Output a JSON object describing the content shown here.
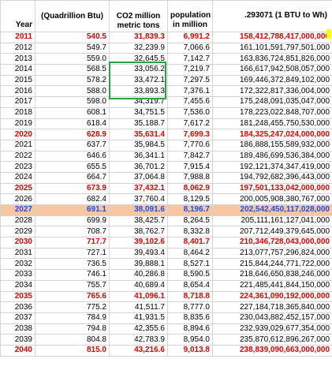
{
  "headers": {
    "year": "Year",
    "energy": "(Quadrillion Btu)",
    "co2": "CO2 million metric tons",
    "population": "population in million",
    "wh": ".293071 (1 BTU to Wh)"
  },
  "rows": [
    {
      "year": "2011",
      "energy": "540.5",
      "co2": "31,839.3",
      "pop": "6,991.2",
      "wh": "158,412,788,417,000,000",
      "style": "red"
    },
    {
      "year": "2012",
      "energy": "549.7",
      "co2": "32,239.9",
      "pop": "7,066.6",
      "wh": "161,101,591,797,501,000",
      "style": ""
    },
    {
      "year": "2013",
      "energy": "559.0",
      "co2": "32,645.5",
      "pop": "7,142.7",
      "wh": "163,836,724,851,826,000",
      "style": ""
    },
    {
      "year": "2014",
      "energy": "568.5",
      "co2": "33,056.2",
      "pop": "7,219.7",
      "wh": "166,617,942,508,057,000",
      "style": ""
    },
    {
      "year": "2015",
      "energy": "578.2",
      "co2": "33,472.1",
      "pop": "7,297.5",
      "wh": "169,446,372,849,102,000",
      "style": ""
    },
    {
      "year": "2016",
      "energy": "588.0",
      "co2": "33,893.3",
      "pop": "7,376.1",
      "wh": "172,322,817,336,004,000",
      "style": ""
    },
    {
      "year": "2017",
      "energy": "598.0",
      "co2": "34,319.7",
      "pop": "7,455.6",
      "wh": "175,248,091,035,047,000",
      "style": ""
    },
    {
      "year": "2018",
      "energy": "608.1",
      "co2": "34,751.5",
      "pop": "7,536.0",
      "wh": "178,223,022,848,707,000",
      "style": ""
    },
    {
      "year": "2019",
      "energy": "618.4",
      "co2": "35,188.7",
      "pop": "7,617.2",
      "wh": "181,248,455,750,530,000",
      "style": ""
    },
    {
      "year": "2020",
      "energy": "628.9",
      "co2": "35,631.4",
      "pop": "7,699.3",
      "wh": "184,325,247,024,000,000",
      "style": "red"
    },
    {
      "year": "2021",
      "energy": "637.7",
      "co2": "35,984.5",
      "pop": "7,770.6",
      "wh": "186,888,155,589,932,000",
      "style": ""
    },
    {
      "year": "2022",
      "energy": "646.6",
      "co2": "36,341.1",
      "pop": "7,842.7",
      "wh": "189,486,699,536,384,000",
      "style": ""
    },
    {
      "year": "2023",
      "energy": "655.5",
      "co2": "36,701.2",
      "pop": "7,915.4",
      "wh": "192,121,374,347,419,000",
      "style": ""
    },
    {
      "year": "2024",
      "energy": "664.7",
      "co2": "37,064.8",
      "pop": "7,988.8",
      "wh": "194,792,682,396,443,000",
      "style": ""
    },
    {
      "year": "2025",
      "energy": "673.9",
      "co2": "37,432.1",
      "pop": "8,062.9",
      "wh": "197,501,133,042,000,000",
      "style": "red"
    },
    {
      "year": "2026",
      "energy": "682.4",
      "co2": "37,760.4",
      "pop": "8,129.5",
      "wh": "200,005,908,380,767,000",
      "style": ""
    },
    {
      "year": "2027",
      "energy": "691.1",
      "co2": "38,091.6",
      "pop": "8,196.7",
      "wh": "202,542,450,117,028,000",
      "style": "highlight"
    },
    {
      "year": "2028",
      "energy": "699.9",
      "co2": "38,425.7",
      "pop": "8,264.5",
      "wh": "205,111,161,127,041,000",
      "style": ""
    },
    {
      "year": "2029",
      "energy": "708.7",
      "co2": "38,762.7",
      "pop": "8,332.8",
      "wh": "207,712,449,379,645,000",
      "style": ""
    },
    {
      "year": "2030",
      "energy": "717.7",
      "co2": "39,102.6",
      "pop": "8,401.7",
      "wh": "210,346,728,043,000,000",
      "style": "red"
    },
    {
      "year": "2031",
      "energy": "727.1",
      "co2": "39,493.4",
      "pop": "8,464.2",
      "wh": "213,077,757,296,824,000",
      "style": ""
    },
    {
      "year": "2032",
      "energy": "736.5",
      "co2": "39,888.1",
      "pop": "8,527.1",
      "wh": "215,844,244,771,722,000",
      "style": ""
    },
    {
      "year": "2033",
      "energy": "746.1",
      "co2": "40,286.8",
      "pop": "8,590.5",
      "wh": "218,646,650,838,246,000",
      "style": ""
    },
    {
      "year": "2034",
      "energy": "755.7",
      "co2": "40,689.4",
      "pop": "8,654.4",
      "wh": "221,485,441,844,150,000",
      "style": ""
    },
    {
      "year": "2035",
      "energy": "765.6",
      "co2": "41,096.1",
      "pop": "8,718.8",
      "wh": "224,361,090,192,000,000",
      "style": "red"
    },
    {
      "year": "2036",
      "energy": "775.2",
      "co2": "41,511.7",
      "pop": "8,777.0",
      "wh": "227,184,718,365,840,000",
      "style": ""
    },
    {
      "year": "2037",
      "energy": "784.9",
      "co2": "41,931.5",
      "pop": "8,835.6",
      "wh": "230,043,882,452,157,000",
      "style": ""
    },
    {
      "year": "2038",
      "energy": "794.8",
      "co2": "42,355.6",
      "pop": "8,894.6",
      "wh": "232,939,029,677,354,000",
      "style": ""
    },
    {
      "year": "2039",
      "energy": "804.8",
      "co2": "42,783.9",
      "pop": "8,954.0",
      "wh": "235,870,612,896,267,000",
      "style": ""
    },
    {
      "year": "2040",
      "energy": "815.0",
      "co2": "43,216.6",
      "pop": "9,013.8",
      "wh": "238,839,090,663,000,000",
      "style": "red"
    }
  ],
  "colors": {
    "red_text": "#e00000",
    "highlight_fill": "#f7c7a4",
    "highlight_text": "#1f4fd8",
    "selection_box": "#2ea043",
    "marker_yellow": "#ffff00"
  }
}
